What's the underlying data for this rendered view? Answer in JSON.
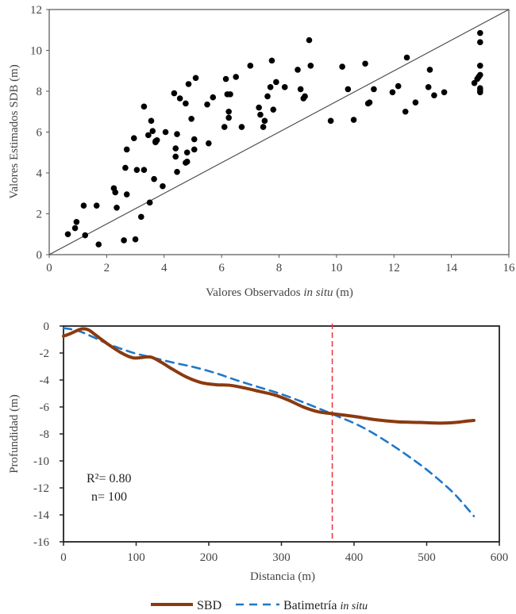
{
  "chart_data": [
    {
      "type": "scatter",
      "title": "",
      "xlabel": "Valores Observados",
      "xlabel_italic": "in situ",
      "xlabel_unit": "(m)",
      "ylabel": "Valores Estimados SDB (m)",
      "xlim": [
        0,
        16
      ],
      "ylim": [
        0,
        12
      ],
      "xticks": [
        "0",
        "2",
        "4",
        "6",
        "8",
        "10",
        "12",
        "14",
        "16"
      ],
      "yticks": [
        "0",
        "2",
        "4",
        "6",
        "8",
        "10",
        "12"
      ],
      "reference_line": "1:1",
      "grid": false,
      "points": [
        [
          0.65,
          1.0
        ],
        [
          0.9,
          1.3
        ],
        [
          0.95,
          1.6
        ],
        [
          1.2,
          2.4
        ],
        [
          1.25,
          0.95
        ],
        [
          1.65,
          2.4
        ],
        [
          1.72,
          0.5
        ],
        [
          2.25,
          3.25
        ],
        [
          2.3,
          3.05
        ],
        [
          2.35,
          2.3
        ],
        [
          2.6,
          0.7
        ],
        [
          2.65,
          4.25
        ],
        [
          2.7,
          5.15
        ],
        [
          2.7,
          2.95
        ],
        [
          3.0,
          0.75
        ],
        [
          2.95,
          5.7
        ],
        [
          3.05,
          4.15
        ],
        [
          3.2,
          1.85
        ],
        [
          3.3,
          4.15
        ],
        [
          3.3,
          7.25
        ],
        [
          3.45,
          5.85
        ],
        [
          3.5,
          2.55
        ],
        [
          3.55,
          6.55
        ],
        [
          3.6,
          6.05
        ],
        [
          3.65,
          3.7
        ],
        [
          3.7,
          5.55
        ],
        [
          3.75,
          5.6
        ],
        [
          3.95,
          3.35
        ],
        [
          4.05,
          6.0
        ],
        [
          4.35,
          7.9
        ],
        [
          4.4,
          5.2
        ],
        [
          4.4,
          4.8
        ],
        [
          4.45,
          4.05
        ],
        [
          4.45,
          5.9
        ],
        [
          4.55,
          7.65
        ],
        [
          4.75,
          7.4
        ],
        [
          4.8,
          5.0
        ],
        [
          4.8,
          4.55
        ],
        [
          4.85,
          8.35
        ],
        [
          4.95,
          6.65
        ],
        [
          5.05,
          5.65
        ],
        [
          5.05,
          5.15
        ],
        [
          5.1,
          8.65
        ],
        [
          5.5,
          7.35
        ],
        [
          5.55,
          5.45
        ],
        [
          5.7,
          7.7
        ],
        [
          6.1,
          6.25
        ],
        [
          6.15,
          8.6
        ],
        [
          6.2,
          7.85
        ],
        [
          6.25,
          7.0
        ],
        [
          6.25,
          6.7
        ],
        [
          6.5,
          8.7
        ],
        [
          6.7,
          6.25
        ],
        [
          7.0,
          9.25
        ],
        [
          7.3,
          7.2
        ],
        [
          7.35,
          6.85
        ],
        [
          7.45,
          6.25
        ],
        [
          7.5,
          6.55
        ],
        [
          7.6,
          7.75
        ],
        [
          7.7,
          8.2
        ],
        [
          7.75,
          9.5
        ],
        [
          7.8,
          7.1
        ],
        [
          7.9,
          8.45
        ],
        [
          8.2,
          8.2
        ],
        [
          8.65,
          9.05
        ],
        [
          8.75,
          8.1
        ],
        [
          8.85,
          7.65
        ],
        [
          8.9,
          7.75
        ],
        [
          9.05,
          10.5
        ],
        [
          9.1,
          9.25
        ],
        [
          9.8,
          6.55
        ],
        [
          10.2,
          9.2
        ],
        [
          10.4,
          8.1
        ],
        [
          10.6,
          6.6
        ],
        [
          11.0,
          9.35
        ],
        [
          11.1,
          7.4
        ],
        [
          11.15,
          7.45
        ],
        [
          11.3,
          8.1
        ],
        [
          11.95,
          7.95
        ],
        [
          12.15,
          8.25
        ],
        [
          12.4,
          7.0
        ],
        [
          12.45,
          9.65
        ],
        [
          12.75,
          7.45
        ],
        [
          13.2,
          8.2
        ],
        [
          13.25,
          9.05
        ],
        [
          13.4,
          7.8
        ],
        [
          13.75,
          7.95
        ],
        [
          14.8,
          8.4
        ],
        [
          14.9,
          8.6
        ],
        [
          14.95,
          8.7
        ],
        [
          15.0,
          8.8
        ],
        [
          15.0,
          9.25
        ],
        [
          15.0,
          10.4
        ],
        [
          15.0,
          10.85
        ],
        [
          15.0,
          8.15
        ],
        [
          15.0,
          7.95
        ],
        [
          15.0,
          8.05
        ],
        [
          4.75,
          4.5
        ],
        [
          3.7,
          5.5
        ],
        [
          6.3,
          7.85
        ]
      ]
    },
    {
      "type": "line",
      "title": "",
      "xlabel": "Distancia (m)",
      "ylabel": "Profundidad (m)",
      "xlim": [
        0,
        600
      ],
      "ylim": [
        -16,
        0
      ],
      "xticks": [
        "0",
        "100",
        "200",
        "300",
        "400",
        "500",
        "600"
      ],
      "yticks": [
        "0",
        "-2",
        "-4",
        "-6",
        "-8",
        "-10",
        "-12",
        "-14",
        "-16"
      ],
      "grid": false,
      "vertical_marker": {
        "x": 370,
        "color": "#e8353b",
        "style": "dashed"
      },
      "annotations": {
        "r2": "R²= 0.80",
        "n": "n= 100"
      },
      "legend_position": "bottom-center",
      "series": [
        {
          "name": "SBD",
          "color": "#8b3a0f",
          "style": "solid",
          "x": [
            0,
            10,
            20,
            27,
            35,
            45,
            60,
            80,
            95,
            105,
            120,
            135,
            150,
            170,
            190,
            210,
            230,
            250,
            270,
            290,
            310,
            330,
            350,
            370,
            400,
            430,
            460,
            490,
            520,
            540,
            555,
            565
          ],
          "y": [
            -0.75,
            -0.55,
            -0.3,
            -0.2,
            -0.3,
            -0.7,
            -1.3,
            -2.0,
            -2.35,
            -2.35,
            -2.3,
            -2.7,
            -3.2,
            -3.8,
            -4.2,
            -4.35,
            -4.4,
            -4.6,
            -4.85,
            -5.1,
            -5.5,
            -6.0,
            -6.35,
            -6.5,
            -6.7,
            -6.95,
            -7.1,
            -7.15,
            -7.2,
            -7.15,
            -7.05,
            -7.0
          ]
        },
        {
          "name": "Batimetría",
          "name_italic": "in situ",
          "color": "#1f77c9",
          "style": "dashed",
          "x": [
            0,
            20,
            40,
            60,
            80,
            100,
            120,
            150,
            180,
            210,
            240,
            270,
            300,
            330,
            360,
            380,
            400,
            420,
            440,
            460,
            480,
            500,
            520,
            540,
            565
          ],
          "y": [
            -0.15,
            -0.35,
            -0.8,
            -1.3,
            -1.7,
            -2.05,
            -2.3,
            -2.7,
            -3.05,
            -3.5,
            -4.05,
            -4.55,
            -5.05,
            -5.65,
            -6.3,
            -6.75,
            -7.2,
            -7.75,
            -8.4,
            -9.1,
            -9.85,
            -10.65,
            -11.55,
            -12.55,
            -14.1
          ]
        }
      ]
    }
  ]
}
